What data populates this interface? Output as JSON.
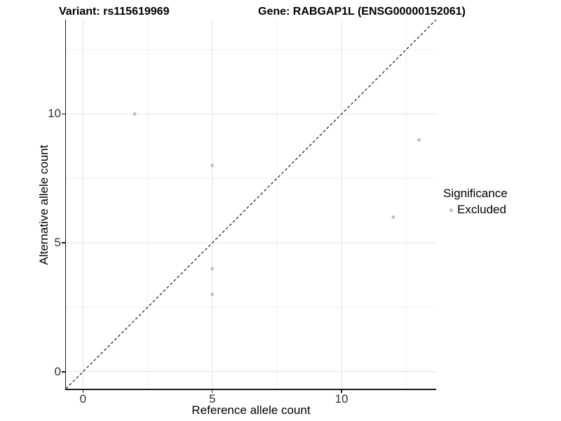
{
  "title": {
    "variant": "Variant: rs115619969",
    "gene": "Gene: RABGAP1L (ENSG00000152061)"
  },
  "chart_data": {
    "type": "scatter",
    "title": "Variant: rs115619969   Gene: RABGAP1L (ENSG00000152061)",
    "xlabel": "Reference allele count",
    "ylabel": "Alternative allele count",
    "xlim": [
      -0.66,
      13.66
    ],
    "ylim": [
      -0.66,
      13.66
    ],
    "xticks": [
      0,
      5,
      10
    ],
    "yticks": [
      0,
      5,
      10
    ],
    "minor_gridlines_x": [
      2.5,
      7.5,
      12.5
    ],
    "minor_gridlines_y": [
      2.5,
      7.5,
      12.5
    ],
    "grid": true,
    "refline": {
      "type": "identity y=x",
      "style": "dashed",
      "color": "#1a1a1a"
    },
    "series": [
      {
        "name": "Excluded",
        "color": "#bebebe",
        "points": [
          {
            "x": 2,
            "y": 10
          },
          {
            "x": 5,
            "y": 8
          },
          {
            "x": 5,
            "y": 4
          },
          {
            "x": 5,
            "y": 3
          },
          {
            "x": 12,
            "y": 6
          },
          {
            "x": 13,
            "y": 9
          }
        ]
      }
    ],
    "legend": {
      "title": "Significance",
      "position": "right",
      "entries": [
        {
          "label": "Excluded",
          "color": "#bebebe"
        }
      ]
    }
  },
  "colors": {
    "background": "#ffffff",
    "axis_line": "#1a1a1a",
    "major_grid": "#e2e2e2",
    "minor_grid": "#efefef",
    "point": "#bebebe",
    "tick_text": "#303030",
    "text": "#000000"
  }
}
